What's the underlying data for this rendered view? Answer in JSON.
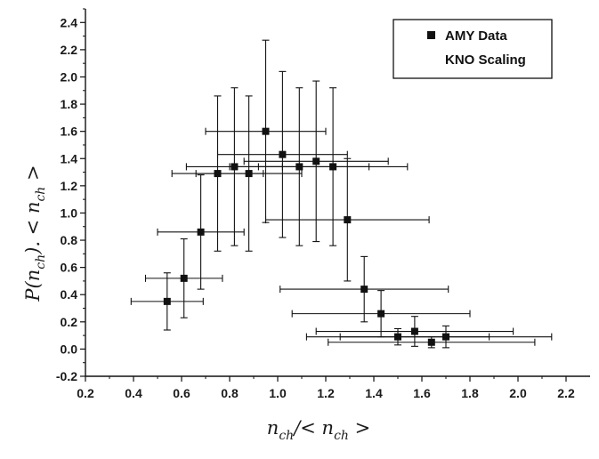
{
  "chart_data": {
    "type": "scatter",
    "xlabel": "n_ch/< n_ch >",
    "ylabel": "P(n_ch). < n_ch >",
    "xlim": [
      0.2,
      2.3
    ],
    "ylim": [
      -0.2,
      2.5
    ],
    "x_ticks": [
      "0.2",
      "0.4",
      "0.6",
      "0.8",
      "1.0",
      "1.2",
      "1.4",
      "1.6",
      "1.8",
      "2.0",
      "2.2"
    ],
    "y_ticks": [
      "-0.2",
      "0.0",
      "0.2",
      "0.4",
      "0.6",
      "0.8",
      "1.0",
      "1.2",
      "1.4",
      "1.6",
      "1.8",
      "2.0",
      "2.2",
      "2.4"
    ],
    "legend": {
      "position": "top-right",
      "entries": [
        "AMY Data",
        "KNO Scaling"
      ]
    },
    "series": [
      {
        "name": "AMY Data",
        "marker": "square",
        "color": "#111111",
        "points": [
          {
            "x": 0.54,
            "y": 0.35,
            "xerr": 0.15,
            "yerr": 0.21
          },
          {
            "x": 0.61,
            "y": 0.52,
            "xerr": 0.16,
            "yerr": 0.29
          },
          {
            "x": 0.68,
            "y": 0.86,
            "xerr": 0.18,
            "yerr": 0.42
          },
          {
            "x": 0.75,
            "y": 1.29,
            "xerr": 0.19,
            "yerr": 0.57
          },
          {
            "x": 0.82,
            "y": 1.34,
            "xerr": 0.2,
            "yerr": 0.58
          },
          {
            "x": 0.88,
            "y": 1.29,
            "xerr": 0.22,
            "yerr": 0.57
          },
          {
            "x": 0.95,
            "y": 1.6,
            "xerr": 0.25,
            "yerr": 0.67
          },
          {
            "x": 1.02,
            "y": 1.43,
            "xerr": 0.27,
            "yerr": 0.61
          },
          {
            "x": 1.09,
            "y": 1.34,
            "xerr": 0.29,
            "yerr": 0.58
          },
          {
            "x": 1.16,
            "y": 1.38,
            "xerr": 0.3,
            "yerr": 0.59
          },
          {
            "x": 1.23,
            "y": 1.34,
            "xerr": 0.31,
            "yerr": 0.58
          },
          {
            "x": 1.29,
            "y": 0.95,
            "xerr": 0.34,
            "yerr": 0.45
          },
          {
            "x": 1.36,
            "y": 0.44,
            "xerr": 0.35,
            "yerr": 0.24
          },
          {
            "x": 1.43,
            "y": 0.26,
            "xerr": 0.37,
            "yerr": 0.17
          },
          {
            "x": 1.5,
            "y": 0.09,
            "xerr": 0.38,
            "yerr": 0.06
          },
          {
            "x": 1.57,
            "y": 0.13,
            "xerr": 0.41,
            "yerr": 0.11
          },
          {
            "x": 1.64,
            "y": 0.05,
            "xerr": 0.43,
            "yerr": 0.04
          },
          {
            "x": 1.7,
            "y": 0.09,
            "xerr": 0.44,
            "yerr": 0.08
          }
        ]
      }
    ]
  }
}
